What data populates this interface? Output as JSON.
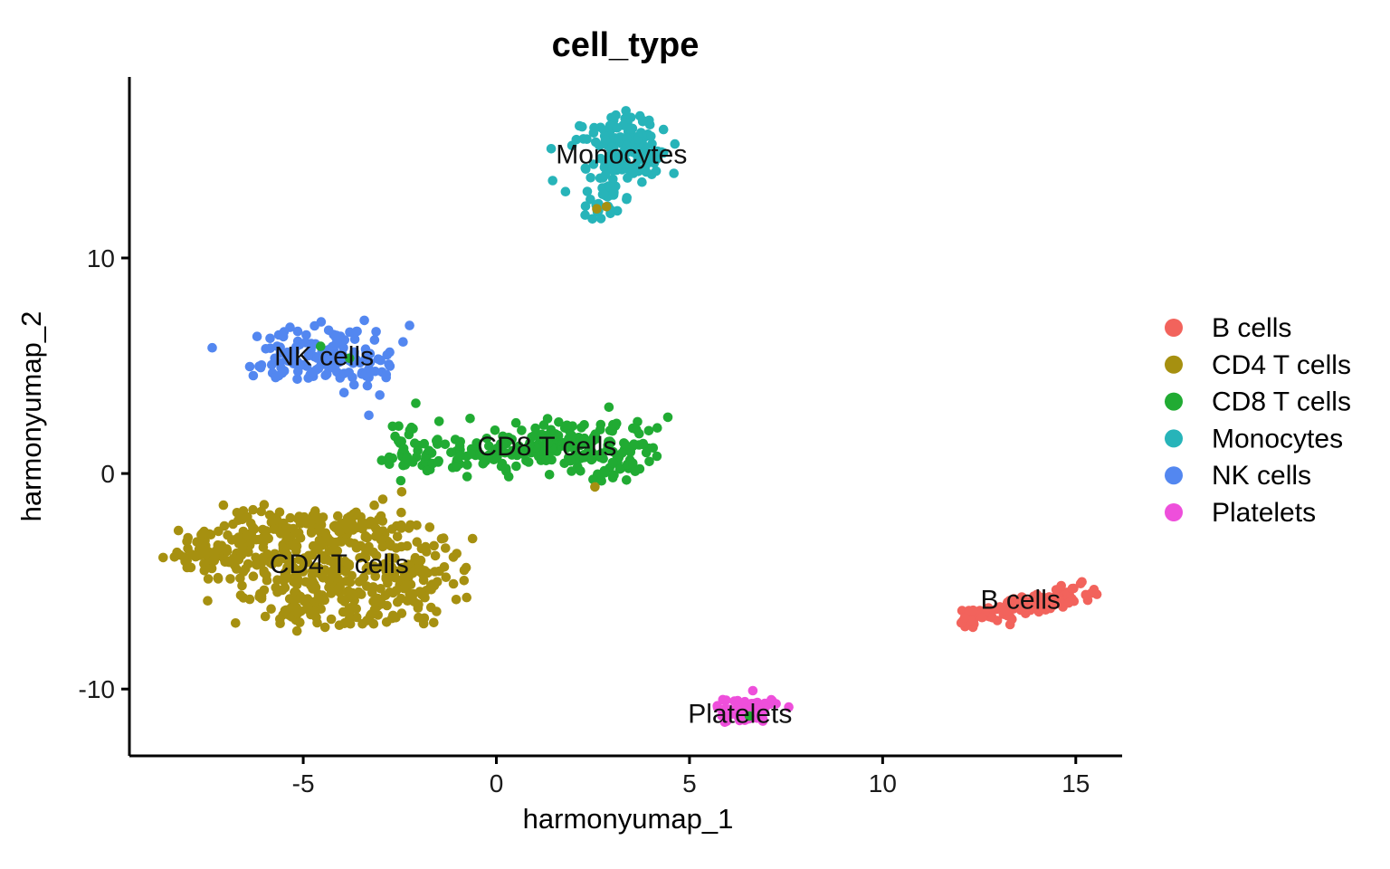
{
  "chart_data": {
    "type": "scatter",
    "title": "cell_type",
    "xlabel": "harmonyumap_1",
    "ylabel": "harmonyumap_2",
    "xlim": [
      -9.5,
      16.2
    ],
    "ylim": [
      -13.1,
      18.4
    ],
    "x_ticks": [
      -5,
      0,
      5,
      10,
      15
    ],
    "y_ticks": [
      -10,
      0,
      10
    ],
    "grid": false,
    "background": "#ffffff",
    "legend_position": "right",
    "point_colors": {
      "B cells": "#F2635C",
      "CD4 T cells": "#A69010",
      "CD8 T cells": "#21AB33",
      "Monocytes": "#27B4B9",
      "NK cells": "#5387F0",
      "Platelets": "#EE4FDB"
    },
    "series": [
      {
        "name": "CD4 T cells",
        "color": "#A69010",
        "components": [
          [
            -7.0,
            -3.3,
            0.75,
            0.5,
            60,
            0.3
          ],
          [
            -7.6,
            -3.9,
            0.4,
            0.45,
            18,
            0
          ],
          [
            -5.4,
            -2.5,
            0.9,
            0.5,
            70,
            0
          ],
          [
            -3.7,
            -2.6,
            0.9,
            0.5,
            70,
            0
          ],
          [
            -5.7,
            -4.3,
            0.8,
            0.7,
            60,
            0
          ],
          [
            -4.1,
            -4.6,
            1.1,
            0.9,
            140,
            0
          ],
          [
            -2.3,
            -4.4,
            0.75,
            0.8,
            80,
            0
          ],
          [
            -3.3,
            -6.2,
            0.9,
            0.55,
            60,
            0
          ],
          [
            -5.0,
            -6.1,
            0.55,
            0.45,
            35,
            0
          ]
        ]
      },
      {
        "name": "NK cells",
        "color": "#5387F0",
        "components": [
          [
            -4.5,
            5.6,
            0.85,
            0.6,
            100,
            0
          ],
          [
            -5.4,
            5.0,
            0.45,
            0.35,
            25,
            0
          ],
          [
            -3.55,
            4.8,
            0.4,
            0.35,
            25,
            0
          ]
        ]
      },
      {
        "name": "CD8 T cells",
        "color": "#21AB33",
        "components": [
          [
            -2.5,
            1.5,
            0.22,
            0.8,
            16,
            0
          ],
          [
            -2.0,
            0.55,
            0.45,
            0.35,
            22,
            0
          ],
          [
            -0.7,
            0.9,
            0.7,
            0.5,
            50,
            0
          ],
          [
            0.9,
            1.2,
            0.85,
            0.55,
            75,
            0
          ],
          [
            2.4,
            1.5,
            0.8,
            0.6,
            85,
            0
          ],
          [
            3.3,
            0.7,
            0.35,
            0.6,
            25,
            0
          ],
          [
            2.8,
            -0.1,
            0.3,
            0.3,
            10,
            0
          ]
        ]
      },
      {
        "name": "Monocytes",
        "color": "#27B4B9",
        "components": [
          [
            3.2,
            16.2,
            0.4,
            0.33,
            30,
            0
          ],
          [
            3.2,
            15.3,
            0.62,
            0.45,
            60,
            0
          ],
          [
            3.8,
            14.5,
            0.42,
            0.45,
            35,
            0
          ],
          [
            3.0,
            14.0,
            0.45,
            0.4,
            30,
            0
          ],
          [
            2.85,
            13.1,
            0.3,
            0.45,
            18,
            0
          ],
          [
            2.62,
            12.3,
            0.28,
            0.3,
            12,
            0
          ]
        ]
      },
      {
        "name": "B cells",
        "color": "#F2635C",
        "components": [
          [
            13.6,
            -6.1,
            0.85,
            0.25,
            80,
            0.38
          ],
          [
            12.4,
            -6.65,
            0.3,
            0.25,
            22,
            0.3
          ],
          [
            14.6,
            -5.7,
            0.35,
            0.22,
            30,
            0.3
          ]
        ]
      },
      {
        "name": "Platelets",
        "color": "#EE4FDB",
        "components": [
          [
            6.5,
            -10.95,
            0.42,
            0.28,
            65,
            0.2
          ]
        ]
      }
    ],
    "stray_points": [
      {
        "x": 2.85,
        "y": 12.38,
        "color": "#A69010"
      },
      {
        "x": 2.6,
        "y": 12.28,
        "color": "#A69010"
      },
      {
        "x": -2.45,
        "y": -0.85,
        "color": "#A69010"
      },
      {
        "x": 2.55,
        "y": -0.62,
        "color": "#A69010"
      },
      {
        "x": -4.55,
        "y": 5.9,
        "color": "#21AB33"
      },
      {
        "x": -3.8,
        "y": 5.35,
        "color": "#21AB33"
      },
      {
        "x": 6.55,
        "y": -11.25,
        "color": "#21AB33"
      },
      {
        "x": -3.3,
        "y": 2.7,
        "color": "#5387F0"
      }
    ],
    "cluster_labels": [
      {
        "text": "Monocytes",
        "x": 3.24,
        "y": 14.8
      },
      {
        "text": "NK cells",
        "x": -4.46,
        "y": 5.45
      },
      {
        "text": "CD8 T cells",
        "x": 1.31,
        "y": 1.27
      },
      {
        "text": "CD4 T cells",
        "x": -4.07,
        "y": -4.2
      },
      {
        "text": "B cells",
        "x": 13.57,
        "y": -5.85
      },
      {
        "text": "Platelets",
        "x": 6.31,
        "y": -11.15
      }
    ],
    "legend": {
      "items": [
        {
          "label": "B cells",
          "color": "#F2635C"
        },
        {
          "label": "CD4 T cells",
          "color": "#A69010"
        },
        {
          "label": "CD8 T cells",
          "color": "#21AB33"
        },
        {
          "label": "Monocytes",
          "color": "#27B4B9"
        },
        {
          "label": "NK cells",
          "color": "#5387F0"
        },
        {
          "label": "Platelets",
          "color": "#EE4FDB"
        }
      ]
    }
  }
}
